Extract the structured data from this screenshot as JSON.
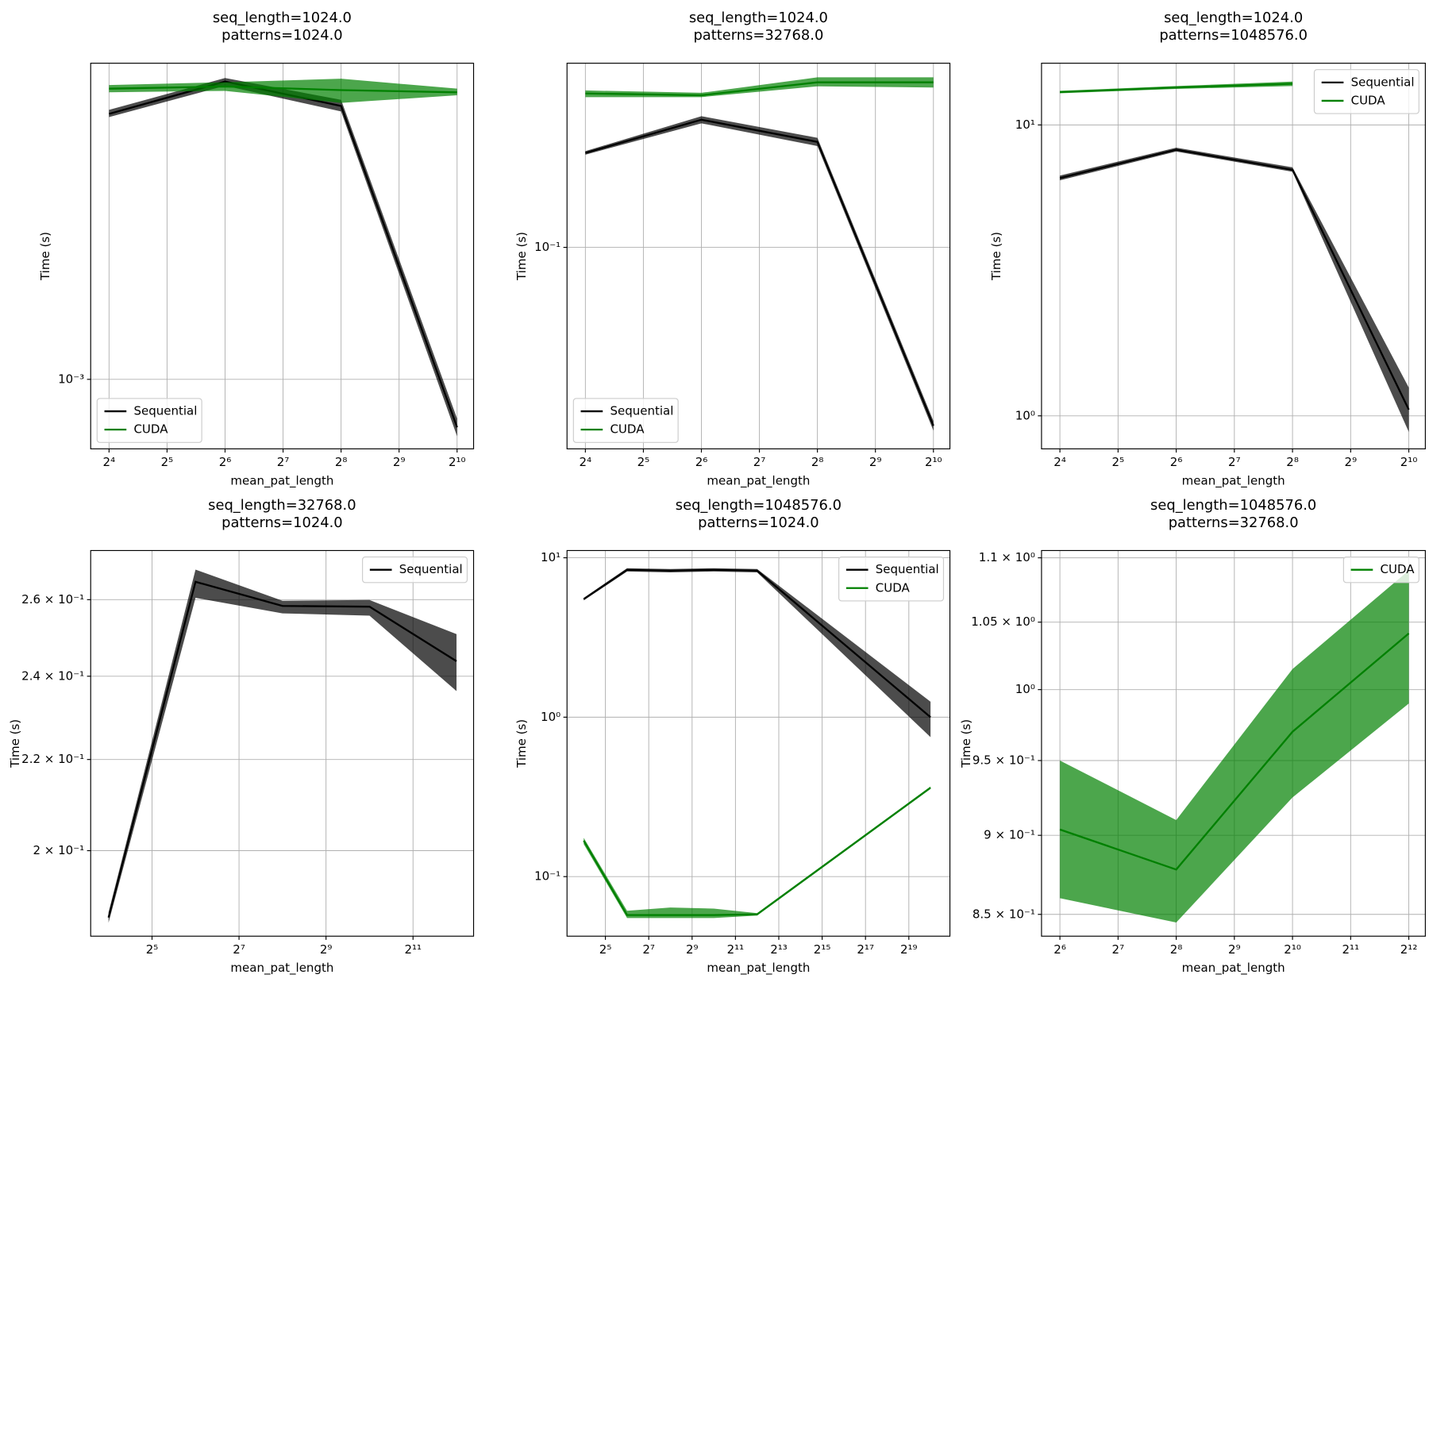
{
  "chart_data": [
    {
      "type": "line",
      "title": "seq_length=1024.0",
      "subtitle": "patterns=1024.0",
      "xlabel": "mean_pat_length",
      "ylabel": "Time (s)",
      "x": [
        16,
        64,
        256,
        1024
      ],
      "xlog2": true,
      "ylog": true,
      "grid": true,
      "legend_loc": "lower left",
      "xlim": [
        12.85,
        1247
      ],
      "ylim": [
        0.00075,
        0.0037
      ],
      "xticks": [
        {
          "value": 16,
          "label": "2⁴"
        },
        {
          "value": 32,
          "label": "2⁵"
        },
        {
          "value": 64,
          "label": "2⁶"
        },
        {
          "value": 128,
          "label": "2⁷"
        },
        {
          "value": 256,
          "label": "2⁸"
        },
        {
          "value": 512,
          "label": "2⁹"
        },
        {
          "value": 1024,
          "label": "2¹⁰"
        }
      ],
      "yticks": [
        {
          "value": 0.001,
          "label": "10⁻³"
        }
      ],
      "series": [
        {
          "name": "Sequential",
          "color": "#000000",
          "values": [
            0.003,
            0.00343,
            0.0031,
            0.00082
          ],
          "lower": [
            0.00296,
            0.00337,
            0.00303,
            0.00079
          ],
          "upper": [
            0.00305,
            0.00348,
            0.00318,
            0.00085
          ]
        },
        {
          "name": "CUDA",
          "color": "#008000",
          "values": [
            0.00333,
            0.00336,
            0.00331,
            0.00328
          ],
          "lower": [
            0.00328,
            0.0033,
            0.00314,
            0.00324
          ],
          "upper": [
            0.00338,
            0.00342,
            0.00347,
            0.00333
          ]
        }
      ]
    },
    {
      "type": "line",
      "title": "seq_length=1024.0",
      "subtitle": "patterns=32768.0",
      "xlabel": "mean_pat_length",
      "ylabel": "Time (s)",
      "x": [
        16,
        64,
        256,
        1024
      ],
      "xlog2": true,
      "ylog": true,
      "grid": true,
      "legend_loc": "lower left",
      "xlim": [
        12.85,
        1247
      ],
      "ylim": [
        0.0282,
        0.318
      ],
      "xticks": [
        {
          "value": 16,
          "label": "2⁴"
        },
        {
          "value": 32,
          "label": "2⁵"
        },
        {
          "value": 64,
          "label": "2⁶"
        },
        {
          "value": 128,
          "label": "2⁷"
        },
        {
          "value": 256,
          "label": "2⁸"
        },
        {
          "value": 512,
          "label": "2⁹"
        },
        {
          "value": 1024,
          "label": "2¹⁰"
        }
      ],
      "yticks": [
        {
          "value": 0.1,
          "label": "10⁻¹"
        }
      ],
      "series": [
        {
          "name": "Sequential",
          "color": "#000000",
          "values": [
            0.181,
            0.223,
            0.194,
            0.0326
          ],
          "lower": [
            0.179,
            0.218,
            0.189,
            0.0316
          ],
          "upper": [
            0.183,
            0.228,
            0.199,
            0.0336
          ]
        },
        {
          "name": "CUDA",
          "color": "#008000",
          "values": [
            0.263,
            0.26,
            0.282,
            0.282
          ],
          "lower": [
            0.257,
            0.257,
            0.275,
            0.273
          ],
          "upper": [
            0.268,
            0.264,
            0.291,
            0.291
          ]
        }
      ]
    },
    {
      "type": "line",
      "title": "seq_length=1024.0",
      "subtitle": "patterns=1048576.0",
      "xlabel": "mean_pat_length",
      "ylabel": "Time (s)",
      "x": [
        16,
        64,
        256,
        1024
      ],
      "xlog2": true,
      "ylog": true,
      "grid": true,
      "legend_loc": "upper right",
      "xlim": [
        12.85,
        1247
      ],
      "ylim": [
        0.77,
        16.3
      ],
      "xticks": [
        {
          "value": 16,
          "label": "2⁴"
        },
        {
          "value": 32,
          "label": "2⁵"
        },
        {
          "value": 64,
          "label": "2⁶"
        },
        {
          "value": 128,
          "label": "2⁷"
        },
        {
          "value": 256,
          "label": "2⁸"
        },
        {
          "value": 512,
          "label": "2⁹"
        },
        {
          "value": 1024,
          "label": "2¹⁰"
        }
      ],
      "yticks": [
        {
          "value": 1,
          "label": "10⁰"
        },
        {
          "value": 10,
          "label": "10¹"
        }
      ],
      "series": [
        {
          "name": "Sequential",
          "color": "#000000",
          "values": [
            6.57,
            8.22,
            7.01,
            1.05
          ],
          "lower": [
            6.45,
            8.1,
            6.9,
            0.88
          ],
          "upper": [
            6.7,
            8.35,
            7.15,
            1.25
          ]
        },
        {
          "name": "CUDA",
          "color": "#008000",
          "values": [
            12.97,
            13.45,
            13.86,
            null
          ],
          "lower": [
            12.85,
            13.3,
            13.6,
            null
          ],
          "upper": [
            13.1,
            13.6,
            14.1,
            null
          ]
        }
      ]
    },
    {
      "type": "line",
      "title": "seq_length=32768.0",
      "subtitle": "patterns=1024.0",
      "xlabel": "mean_pat_length",
      "ylabel": "Time (s)",
      "x": [
        16,
        64,
        256,
        1024,
        4096
      ],
      "xlog2": true,
      "ylog": true,
      "grid": true,
      "legend_loc": "upper right",
      "xlim": [
        12.04,
        5376
      ],
      "ylim": [
        0.1829,
        0.2737
      ],
      "xticks": [
        {
          "value": 32,
          "label": "2⁵"
        },
        {
          "value": 128,
          "label": "2⁷"
        },
        {
          "value": 512,
          "label": "2⁹"
        },
        {
          "value": 2048,
          "label": "2¹¹"
        }
      ],
      "yticks": [
        {
          "value": 0.2,
          "label": "2 × 10⁻¹"
        },
        {
          "value": 0.22,
          "label": "2.2 × 10⁻¹"
        },
        {
          "value": 0.24,
          "label": "2.4 × 10⁻¹"
        },
        {
          "value": 0.26,
          "label": "2.6 × 10⁻¹"
        }
      ],
      "series": [
        {
          "name": "Sequential",
          "color": "#000000",
          "values": [
            0.1865,
            0.2649,
            0.2583,
            0.2581,
            0.2438
          ],
          "lower": [
            0.1855,
            0.2605,
            0.2563,
            0.2557,
            0.2363
          ],
          "upper": [
            0.1875,
            0.2683,
            0.2597,
            0.2599,
            0.2508
          ]
        }
      ]
    },
    {
      "type": "line",
      "title": "seq_length=1048576.0",
      "subtitle": "patterns=1024.0",
      "xlabel": "mean_pat_length",
      "ylabel": "Time (s)",
      "x": [
        16,
        64,
        256,
        1024,
        4096,
        1048576
      ],
      "xlog2": true,
      "ylog": true,
      "grid": true,
      "legend_loc": "upper right",
      "xlim": [
        9.38,
        1950000
      ],
      "ylim": [
        0.0423,
        11.1
      ],
      "xticks": [
        {
          "value": 32,
          "label": "2⁵"
        },
        {
          "value": 128,
          "label": "2⁷"
        },
        {
          "value": 512,
          "label": "2⁹"
        },
        {
          "value": 2048,
          "label": "2¹¹"
        },
        {
          "value": 8192,
          "label": "2¹³"
        },
        {
          "value": 32768,
          "label": "2¹⁵"
        },
        {
          "value": 131072,
          "label": "2¹⁷"
        },
        {
          "value": 524288,
          "label": "2¹⁹"
        }
      ],
      "yticks": [
        {
          "value": 0.1,
          "label": "10⁻¹"
        },
        {
          "value": 1,
          "label": "10⁰"
        },
        {
          "value": 10,
          "label": "10¹"
        }
      ],
      "series": [
        {
          "name": "Sequential",
          "color": "#000000",
          "values": [
            5.5,
            8.4,
            8.3,
            8.4,
            8.3,
            1.0
          ],
          "lower": [
            5.4,
            8.2,
            8.1,
            8.2,
            8.1,
            0.75
          ],
          "upper": [
            5.6,
            8.6,
            8.5,
            8.6,
            8.5,
            1.25
          ]
        },
        {
          "name": "CUDA",
          "color": "#008000",
          "values": [
            0.168,
            0.0574,
            0.0574,
            0.0574,
            0.058,
            0.361
          ],
          "lower": [
            0.16,
            0.055,
            0.055,
            0.055,
            0.057,
            0.355
          ],
          "upper": [
            0.175,
            0.061,
            0.064,
            0.063,
            0.059,
            0.367
          ]
        }
      ]
    },
    {
      "type": "line",
      "title": "seq_length=1048576.0",
      "subtitle": "patterns=32768.0",
      "xlabel": "mean_pat_length",
      "ylabel": "Time (s)",
      "x": [
        64,
        256,
        1024,
        4096
      ],
      "xlog2": true,
      "ylog": true,
      "grid": true,
      "legend_loc": "upper right",
      "xlim": [
        51.4,
        4988
      ],
      "ylim": [
        0.8367,
        1.1058
      ],
      "xticks": [
        {
          "value": 64,
          "label": "2⁶"
        },
        {
          "value": 128,
          "label": "2⁷"
        },
        {
          "value": 256,
          "label": "2⁸"
        },
        {
          "value": 512,
          "label": "2⁹"
        },
        {
          "value": 1024,
          "label": "2¹⁰"
        },
        {
          "value": 2048,
          "label": "2¹¹"
        },
        {
          "value": 4096,
          "label": "2¹²"
        }
      ],
      "yticks": [
        {
          "value": 0.85,
          "label": "8.5 × 10⁻¹"
        },
        {
          "value": 0.9,
          "label": "9 × 10⁻¹"
        },
        {
          "value": 0.95,
          "label": "9.5 × 10⁻¹"
        },
        {
          "value": 1,
          "label": "10⁰"
        },
        {
          "value": 1.05,
          "label": "1.05 × 10⁰"
        },
        {
          "value": 1.1,
          "label": "1.1 × 10⁰"
        }
      ],
      "series": [
        {
          "name": "CUDA",
          "color": "#008000",
          "values": [
            0.9038,
            0.878,
            0.97,
            1.0415
          ],
          "lower": [
            0.86,
            0.845,
            0.925,
            0.99
          ],
          "upper": [
            0.95,
            0.91,
            1.015,
            1.09
          ]
        }
      ]
    }
  ]
}
